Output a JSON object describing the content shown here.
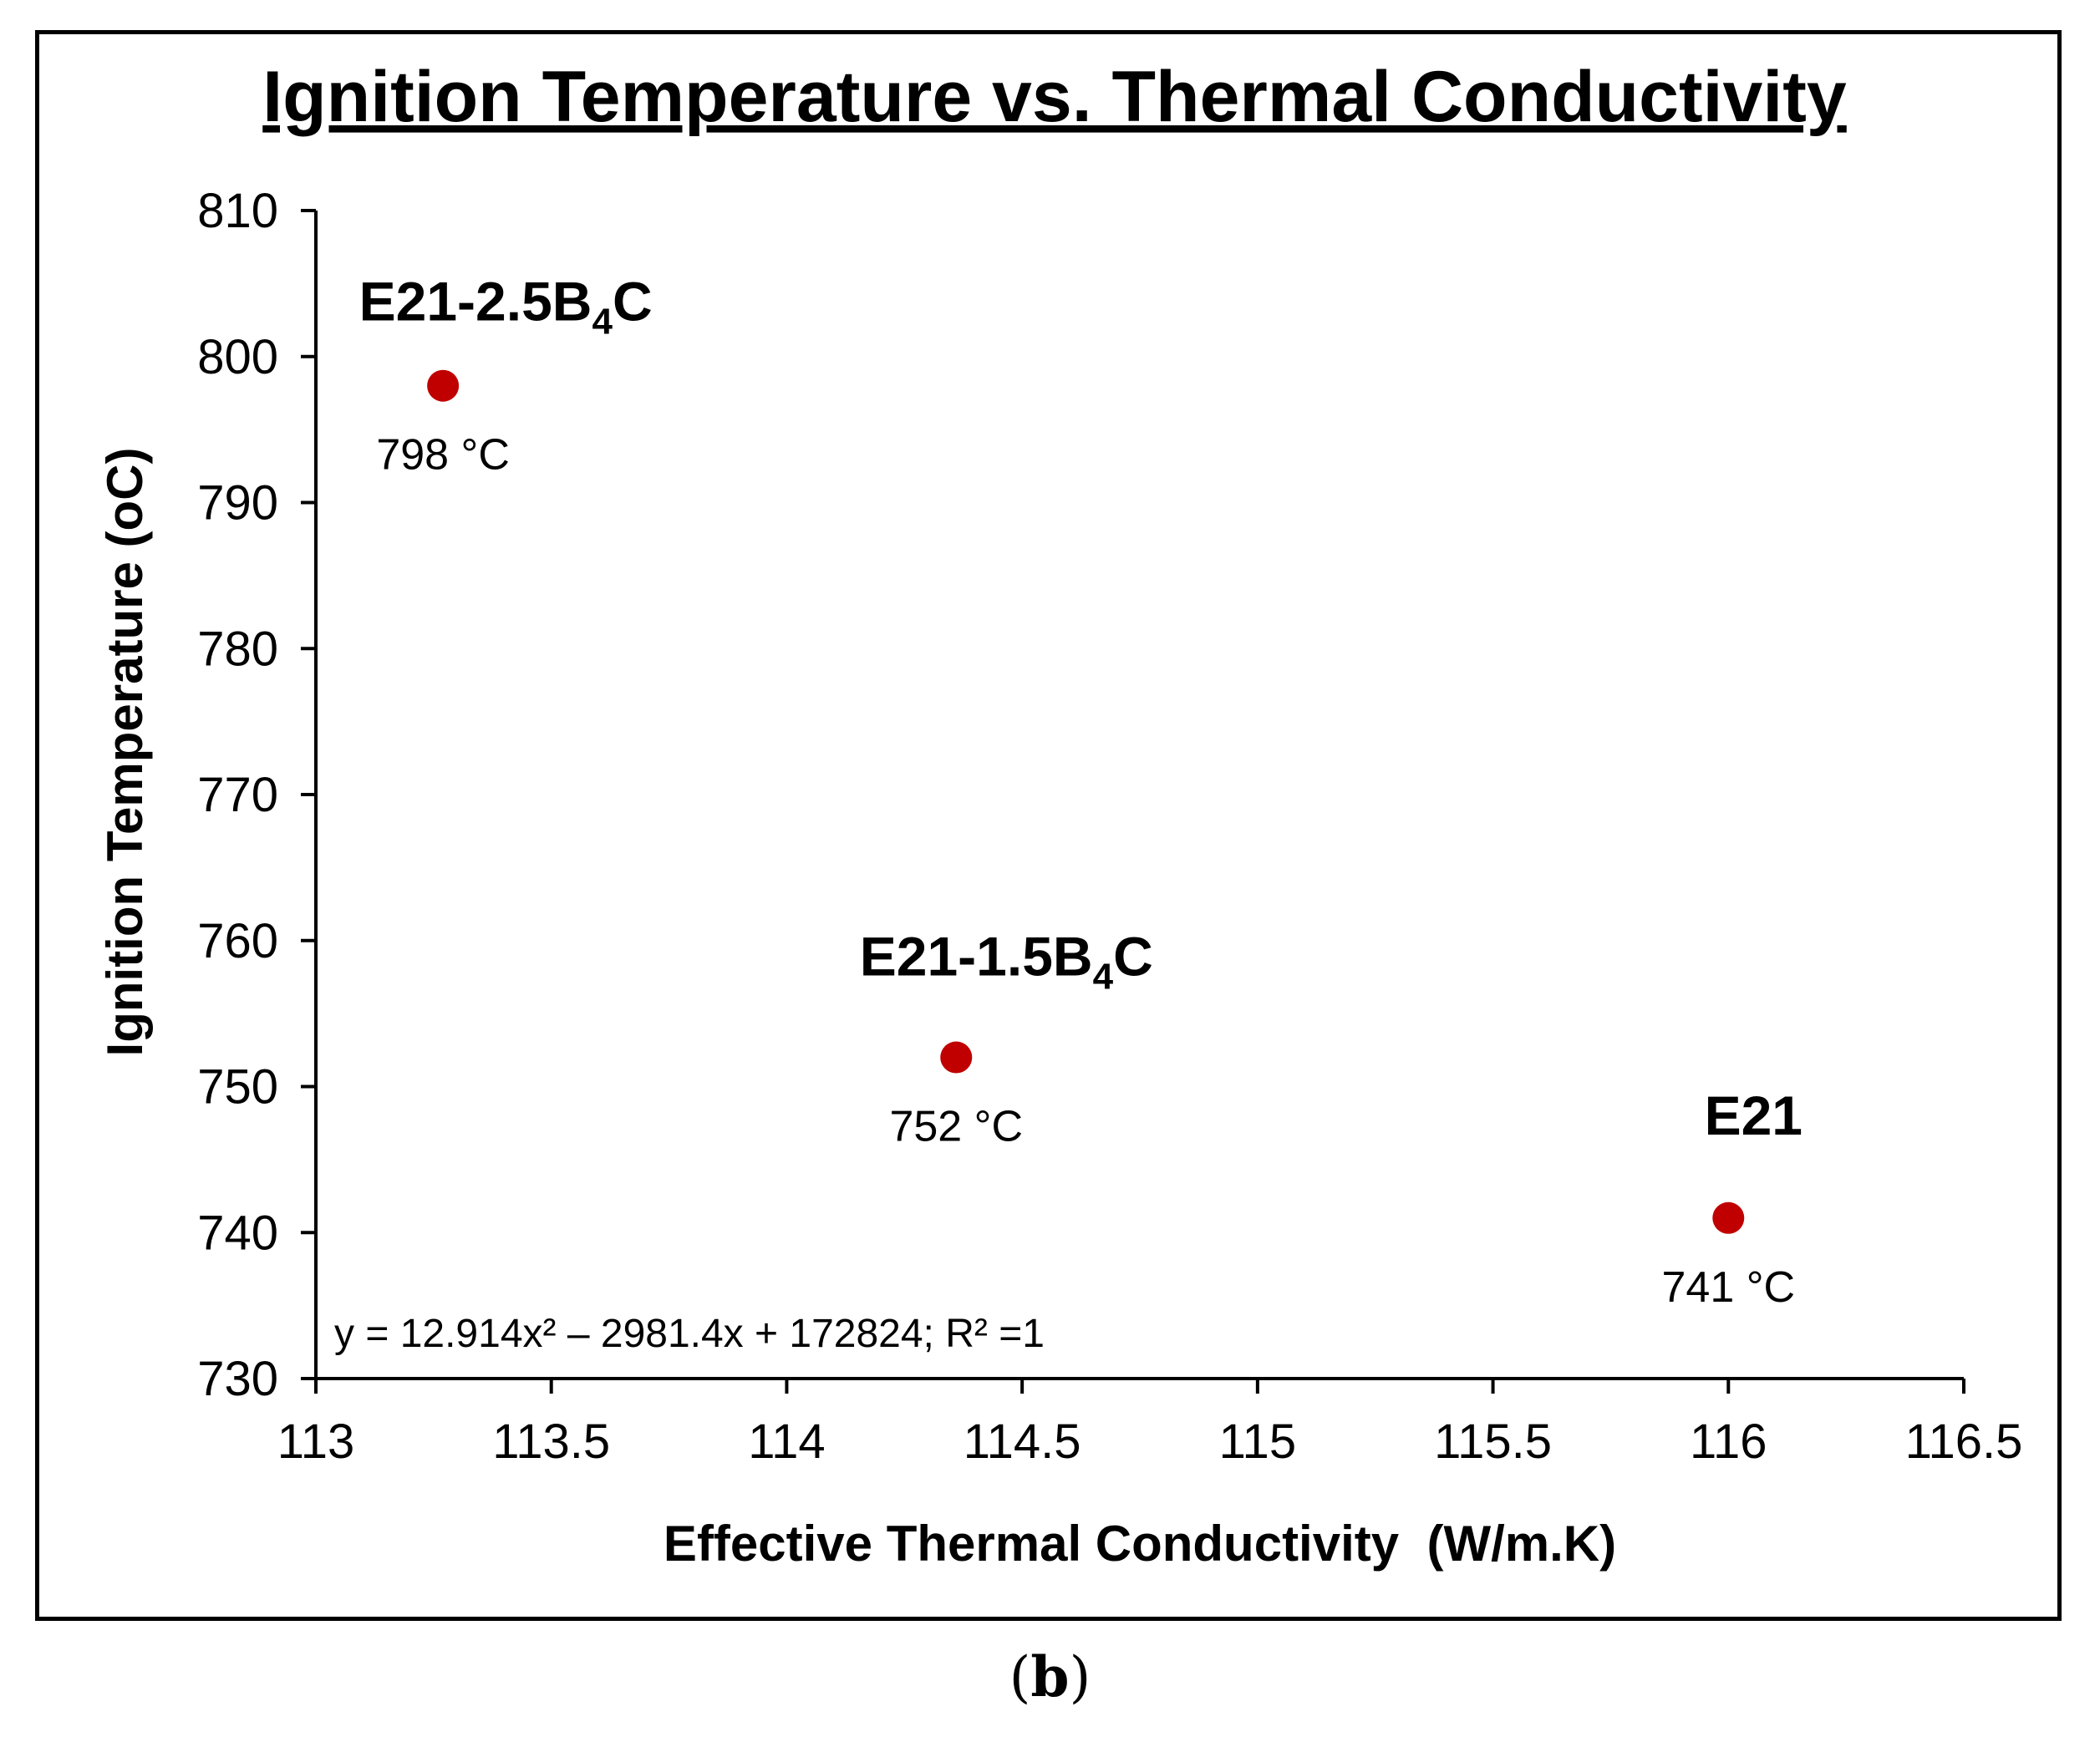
{
  "chart_data": {
    "type": "scatter",
    "title": "Ignition Temperature vs. Thermal Conductivity",
    "xlabel": "Effective Thermal Conductivity  (W/m.K)",
    "ylabel": "Ignition Temperature (oC)",
    "xlim": [
      113,
      116.5
    ],
    "ylim": [
      730,
      810
    ],
    "xticks": [
      113,
      113.5,
      114,
      114.5,
      115,
      115.5,
      116,
      116.5
    ],
    "xtick_labels": [
      "113",
      "113.5",
      "114",
      "114.5",
      "115",
      "115.5",
      "116",
      "116.5"
    ],
    "yticks": [
      730,
      740,
      750,
      760,
      770,
      780,
      790,
      800,
      810
    ],
    "ytick_labels": [
      "730",
      "740",
      "750",
      "760",
      "770",
      "780",
      "790",
      "800",
      "810"
    ],
    "grid": false,
    "marker_color": "#c00000",
    "points": [
      {
        "x": 113.27,
        "y": 798,
        "name": "E21-2.5",
        "name_sub": "4",
        "name_suffix": "C",
        "name_mid": "B",
        "value_label": "798 °C"
      },
      {
        "x": 114.36,
        "y": 752,
        "name": "E21-1.5",
        "name_sub": "4",
        "name_suffix": "C",
        "name_mid": "B",
        "value_label": "752 °C"
      },
      {
        "x": 116.0,
        "y": 741,
        "name": "E21",
        "name_sub": "",
        "name_suffix": "",
        "name_mid": "",
        "value_label": "741 °C"
      }
    ],
    "equation": "y = 12.914x² – 2981.4x + 172824; R² =1"
  },
  "panel_label": "b"
}
